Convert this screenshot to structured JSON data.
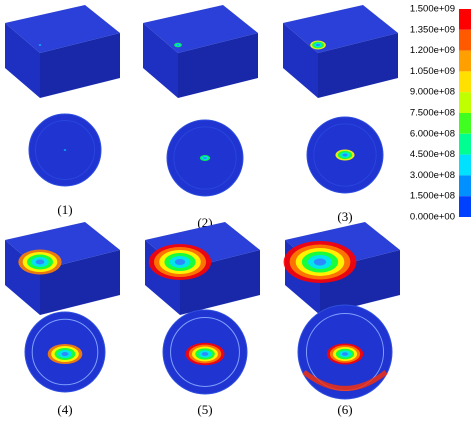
{
  "panels": [
    {
      "label": "(1)"
    },
    {
      "label": "(2)"
    },
    {
      "label": "(3)"
    },
    {
      "label": "(4)"
    },
    {
      "label": "(5)"
    },
    {
      "label": "(6)"
    }
  ],
  "colorbar": {
    "labels": [
      "1.500e+09",
      "1.350e+09",
      "1.200e+09",
      "1.050e+09",
      "9.000e+08",
      "7.500e+08",
      "6.000e+08",
      "4.500e+08",
      "3.000e+08",
      "1.500e+08",
      "0.000e+00"
    ]
  }
}
